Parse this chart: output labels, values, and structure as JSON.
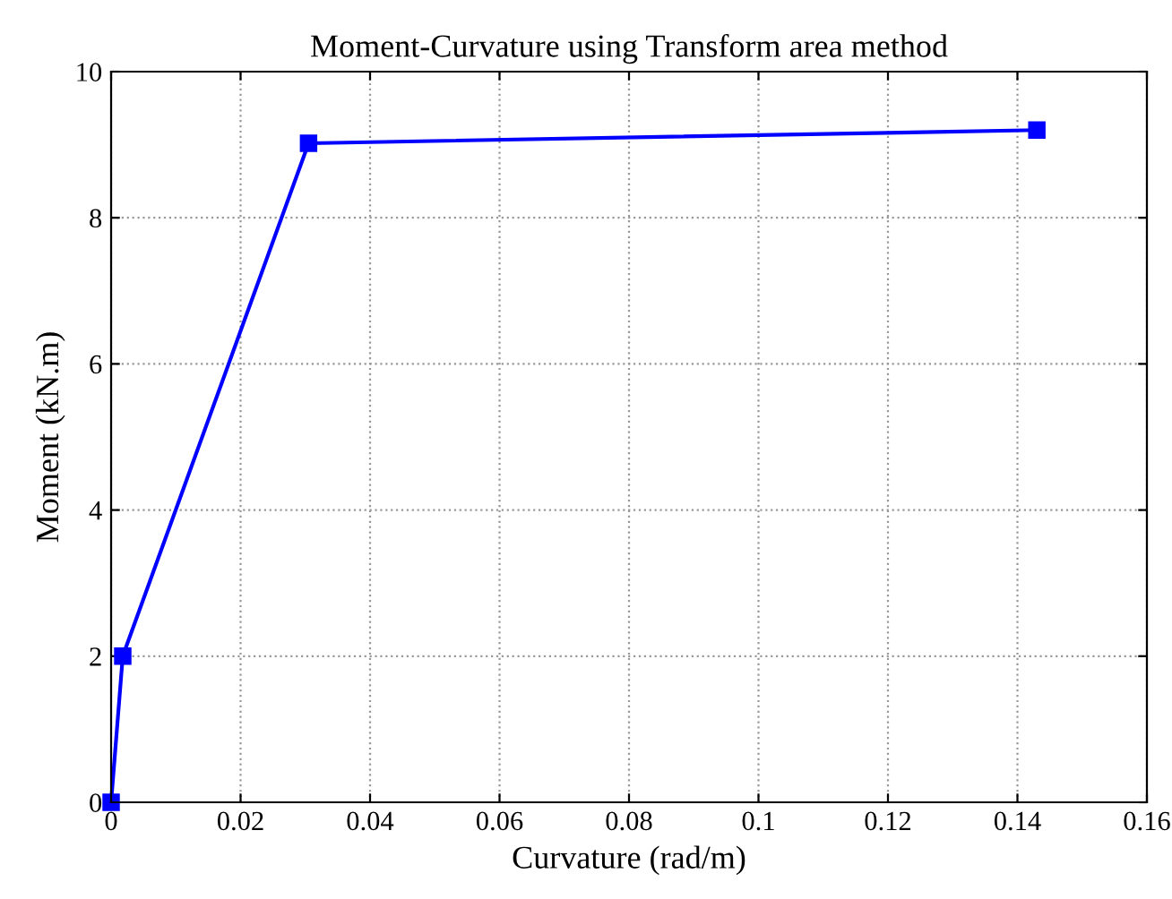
{
  "chart_data": {
    "type": "line",
    "title": "Moment-Curvature using Transform area method",
    "xlabel": "Curvature (rad/m)",
    "ylabel": "Moment (kN.m)",
    "x": [
      0,
      0.0018,
      0.0305,
      0.143
    ],
    "series": [
      {
        "color": "#0000ff",
        "values": [
          0,
          2.0,
          9.02,
          9.2
        ]
      }
    ],
    "xlim": [
      0,
      0.16
    ],
    "xticks": [
      0,
      0.02,
      0.04,
      0.06,
      0.08,
      0.1,
      0.12,
      0.14,
      0.16
    ],
    "ylim": [
      0,
      10
    ],
    "yticks": [
      0,
      2,
      4,
      6,
      8,
      10
    ],
    "grid": true,
    "marker": "square",
    "line_style": "solid"
  }
}
